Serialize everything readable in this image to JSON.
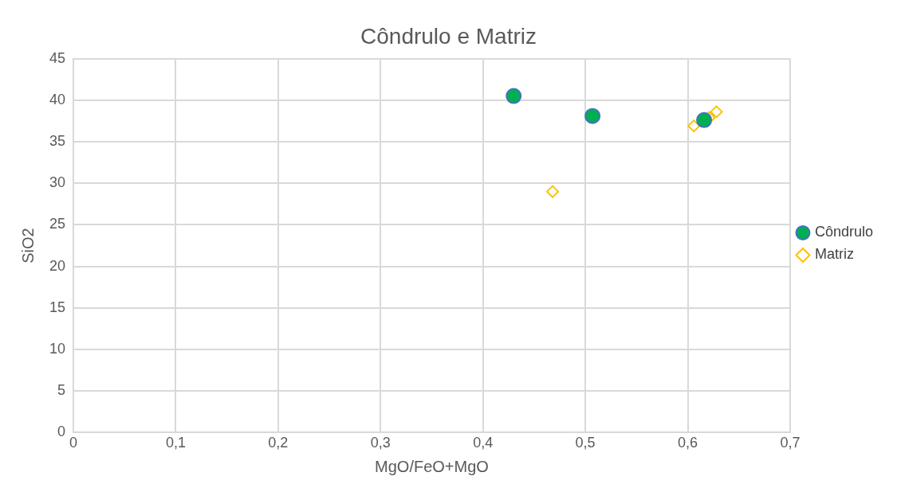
{
  "chart_data": {
    "type": "scatter",
    "title": "Côndrulo e Matriz",
    "xlabel": "MgO/FeO+MgO",
    "ylabel": "SiO2",
    "xlim": [
      0,
      0.7
    ],
    "xticks": [
      {
        "value": 0,
        "label": "0"
      },
      {
        "value": 0.1,
        "label": "0,1"
      },
      {
        "value": 0.2,
        "label": "0,2"
      },
      {
        "value": 0.3,
        "label": "0,3"
      },
      {
        "value": 0.4,
        "label": "0,4"
      },
      {
        "value": 0.5,
        "label": "0,5"
      },
      {
        "value": 0.6,
        "label": "0,6"
      },
      {
        "value": 0.7,
        "label": "0,7"
      }
    ],
    "ylim": [
      0,
      45
    ],
    "yticks": [
      0,
      5,
      10,
      15,
      20,
      25,
      30,
      35,
      40,
      45
    ],
    "grid": true,
    "legend": "right",
    "series": [
      {
        "name": "Côndrulo",
        "color": "#00b050",
        "marker": "circle",
        "x": [
          0.43,
          0.507,
          0.616
        ],
        "values": [
          40.5,
          38.1,
          37.6
        ]
      },
      {
        "name": "Matriz",
        "color": "#ffc000",
        "marker": "diamond",
        "x": [
          0.468,
          0.606,
          0.621,
          0.628
        ],
        "values": [
          29.0,
          36.9,
          37.9,
          38.6
        ]
      }
    ]
  }
}
